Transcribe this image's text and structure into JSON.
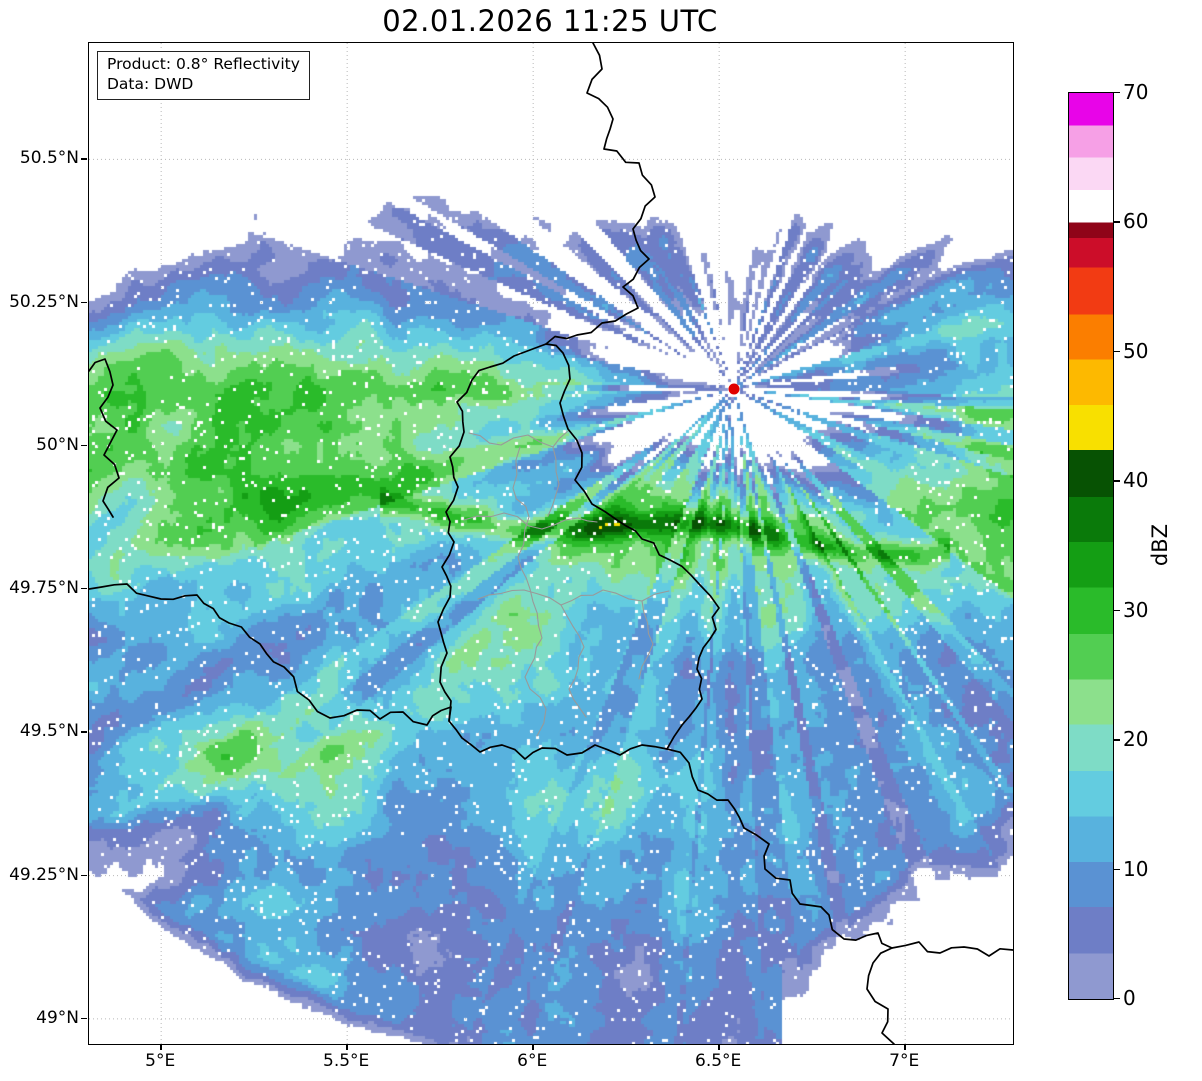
{
  "title": "02.01.2026 11:25 UTC",
  "info_box": {
    "line1": "Product: 0.8° Reflectivity",
    "line2": "Data: DWD"
  },
  "axes": {
    "x_ticks": [
      {
        "value": 5.0,
        "label": "5°E"
      },
      {
        "value": 5.5,
        "label": "5.5°E"
      },
      {
        "value": 6.0,
        "label": "6°E"
      },
      {
        "value": 6.5,
        "label": "6.5°E"
      },
      {
        "value": 7.0,
        "label": "7°E"
      }
    ],
    "y_ticks": [
      {
        "value": 50.5,
        "label": "50.5°N"
      },
      {
        "value": 50.25,
        "label": "50.25°N"
      },
      {
        "value": 50.0,
        "label": "50°N"
      },
      {
        "value": 49.75,
        "label": "49.75°N"
      },
      {
        "value": 49.5,
        "label": "49.5°N"
      },
      {
        "value": 49.25,
        "label": "49.25°N"
      },
      {
        "value": 49.0,
        "label": "49°N"
      }
    ]
  },
  "colorbar": {
    "label": "dBZ",
    "min": 0,
    "max": 70,
    "ticks": [
      {
        "value": 0,
        "label": "0"
      },
      {
        "value": 10,
        "label": "10"
      },
      {
        "value": 20,
        "label": "20"
      },
      {
        "value": 30,
        "label": "30"
      },
      {
        "value": 40,
        "label": "40"
      },
      {
        "value": 50,
        "label": "50"
      },
      {
        "value": 60,
        "label": "60"
      },
      {
        "value": 70,
        "label": "70"
      }
    ],
    "stops": [
      {
        "v": 0,
        "color": "#8f99d0"
      },
      {
        "v": 3.5,
        "color": "#6e7ec6"
      },
      {
        "v": 7.1,
        "color": "#5a92d3"
      },
      {
        "v": 10.6,
        "color": "#58b2de"
      },
      {
        "v": 14.1,
        "color": "#63cce0"
      },
      {
        "v": 17.6,
        "color": "#7edcc6"
      },
      {
        "v": 21.2,
        "color": "#8ce08c"
      },
      {
        "v": 24.7,
        "color": "#52ce52"
      },
      {
        "v": 28.2,
        "color": "#2abb2a"
      },
      {
        "v": 31.8,
        "color": "#149e14"
      },
      {
        "v": 35.3,
        "color": "#0a7a0a"
      },
      {
        "v": 38.8,
        "color": "#075203"
      },
      {
        "v": 42.4,
        "color": "#f8e000"
      },
      {
        "v": 45.9,
        "color": "#fdb900"
      },
      {
        "v": 49.4,
        "color": "#fb7e00"
      },
      {
        "v": 52.9,
        "color": "#f23b13"
      },
      {
        "v": 56.5,
        "color": "#cc0d29"
      },
      {
        "v": 58.8,
        "color": "#8f0418"
      },
      {
        "v": 60,
        "color": "#ffffff"
      },
      {
        "v": 62.5,
        "color": "#fbd8f4"
      },
      {
        "v": 65,
        "color": "#f6a0e6"
      },
      {
        "v": 67.5,
        "color": "#e804e8"
      }
    ]
  },
  "marker": {
    "lon": 6.54,
    "lat": 50.1,
    "color": "#e00000"
  },
  "map_style": {
    "grid_color": "#b8b8b8",
    "country_border_color": "#000000",
    "region_border_color": "#999999"
  }
}
